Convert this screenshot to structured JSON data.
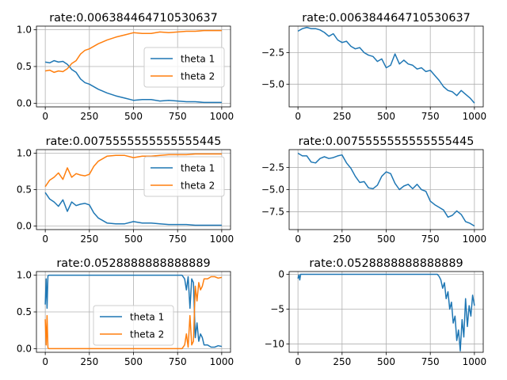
{
  "chart_data": [
    {
      "type": "line",
      "title": "rate:0.006384464710530637",
      "xlabel": "",
      "ylabel": "",
      "xlim": [
        -50,
        1050
      ],
      "ylim": [
        -0.05,
        1.05
      ],
      "xticks": [
        0,
        250,
        500,
        750,
        1000
      ],
      "yticks": [
        0.0,
        0.5,
        1.0
      ],
      "ytick_labels": [
        "0.0",
        "0.5",
        "1.0"
      ],
      "grid": true,
      "legend": "center-right",
      "colors": {
        "theta 1": "#1f77b4",
        "theta 2": "#ff7f0e"
      },
      "x": [
        0,
        25,
        50,
        75,
        100,
        125,
        150,
        175,
        200,
        225,
        250,
        300,
        350,
        400,
        450,
        500,
        550,
        600,
        650,
        700,
        750,
        800,
        850,
        900,
        950,
        1000
      ],
      "series": [
        {
          "name": "theta 1",
          "values": [
            0.56,
            0.55,
            0.58,
            0.56,
            0.57,
            0.53,
            0.46,
            0.42,
            0.33,
            0.28,
            0.26,
            0.19,
            0.14,
            0.1,
            0.07,
            0.04,
            0.05,
            0.05,
            0.03,
            0.04,
            0.03,
            0.02,
            0.02,
            0.01,
            0.01,
            0.01
          ]
        },
        {
          "name": "theta 2",
          "values": [
            0.44,
            0.45,
            0.42,
            0.44,
            0.43,
            0.47,
            0.54,
            0.58,
            0.67,
            0.72,
            0.74,
            0.81,
            0.86,
            0.9,
            0.93,
            0.96,
            0.95,
            0.95,
            0.97,
            0.96,
            0.97,
            0.98,
            0.98,
            0.99,
            0.99,
            0.99
          ]
        }
      ]
    },
    {
      "type": "line",
      "title": "rate:0.006384464710530637",
      "xlabel": "",
      "ylabel": "",
      "xlim": [
        -50,
        1050
      ],
      "ylim": [
        -6.8,
        -0.4
      ],
      "xticks": [
        0,
        250,
        500,
        750,
        1000
      ],
      "yticks": [
        -2.5,
        -5.0
      ],
      "ytick_labels": [
        "−2.5",
        "−5.0"
      ],
      "grid": true,
      "colors": {
        "line": "#1f77b4"
      },
      "x": [
        0,
        25,
        50,
        75,
        100,
        125,
        150,
        175,
        200,
        225,
        250,
        275,
        300,
        325,
        350,
        375,
        400,
        425,
        450,
        475,
        500,
        525,
        550,
        575,
        600,
        625,
        650,
        675,
        700,
        725,
        750,
        775,
        800,
        825,
        850,
        875,
        900,
        925,
        950,
        975,
        1000
      ],
      "values": [
        -0.8,
        -0.6,
        -0.5,
        -0.6,
        -0.6,
        -0.7,
        -0.9,
        -1.2,
        -1.0,
        -1.5,
        -1.7,
        -1.6,
        -2.0,
        -2.2,
        -2.1,
        -2.5,
        -2.7,
        -2.8,
        -3.2,
        -3.0,
        -3.7,
        -3.5,
        -2.6,
        -3.4,
        -3.1,
        -3.4,
        -3.5,
        -3.8,
        -3.7,
        -4.0,
        -3.9,
        -4.3,
        -4.7,
        -5.2,
        -5.5,
        -5.6,
        -5.9,
        -5.5,
        -5.8,
        -6.1,
        -6.5
      ]
    },
    {
      "type": "line",
      "title": "rate:0.0075555555555555445",
      "xlabel": "",
      "ylabel": "",
      "xlim": [
        -50,
        1050
      ],
      "ylim": [
        -0.05,
        1.05
      ],
      "xticks": [
        0,
        250,
        500,
        750,
        1000
      ],
      "yticks": [
        0.0,
        0.5,
        1.0
      ],
      "ytick_labels": [
        "0.0",
        "0.5",
        "1.0"
      ],
      "grid": true,
      "legend": "top-right",
      "colors": {
        "theta 1": "#1f77b4",
        "theta 2": "#ff7f0e"
      },
      "x": [
        0,
        25,
        50,
        75,
        100,
        125,
        150,
        175,
        200,
        225,
        250,
        275,
        300,
        350,
        400,
        450,
        500,
        550,
        600,
        650,
        700,
        750,
        800,
        850,
        900,
        950,
        1000
      ],
      "series": [
        {
          "name": "theta 1",
          "values": [
            0.46,
            0.37,
            0.33,
            0.27,
            0.36,
            0.2,
            0.33,
            0.28,
            0.3,
            0.31,
            0.29,
            0.18,
            0.11,
            0.04,
            0.03,
            0.03,
            0.06,
            0.04,
            0.04,
            0.03,
            0.02,
            0.02,
            0.02,
            0.01,
            0.01,
            0.01,
            0.01
          ]
        },
        {
          "name": "theta 2",
          "values": [
            0.54,
            0.63,
            0.67,
            0.73,
            0.64,
            0.8,
            0.67,
            0.72,
            0.7,
            0.69,
            0.71,
            0.82,
            0.89,
            0.96,
            0.97,
            0.97,
            0.94,
            0.96,
            0.96,
            0.97,
            0.98,
            0.98,
            0.98,
            0.99,
            0.99,
            0.99,
            0.99
          ]
        }
      ]
    },
    {
      "type": "line",
      "title": "rate:0.0075555555555555445",
      "xlabel": "",
      "ylabel": "",
      "xlim": [
        -50,
        1050
      ],
      "ylim": [
        -9.5,
        -0.5
      ],
      "xticks": [
        0,
        250,
        500,
        750,
        1000
      ],
      "yticks": [
        -2.5,
        -5.0,
        -7.5
      ],
      "ytick_labels": [
        "−2.5",
        "−5.0",
        "−7.5"
      ],
      "grid": true,
      "colors": {
        "line": "#1f77b4"
      },
      "x": [
        0,
        25,
        50,
        75,
        100,
        125,
        150,
        175,
        200,
        225,
        250,
        275,
        300,
        325,
        350,
        375,
        400,
        425,
        450,
        475,
        500,
        525,
        550,
        575,
        600,
        625,
        650,
        675,
        700,
        725,
        750,
        775,
        800,
        825,
        850,
        875,
        900,
        925,
        950,
        975,
        1000
      ],
      "values": [
        -0.9,
        -1.2,
        -1.2,
        -1.9,
        -2.0,
        -1.5,
        -1.3,
        -1.5,
        -1.4,
        -1.2,
        -1.1,
        -2.0,
        -2.6,
        -3.5,
        -4.2,
        -4.1,
        -4.8,
        -4.9,
        -4.5,
        -3.5,
        -3.0,
        -3.2,
        -4.3,
        -5.0,
        -4.6,
        -4.4,
        -4.9,
        -4.4,
        -5.0,
        -5.2,
        -6.3,
        -6.7,
        -7.0,
        -7.3,
        -8.1,
        -7.9,
        -7.4,
        -7.8,
        -8.6,
        -8.8,
        -9.1
      ]
    },
    {
      "type": "line",
      "title": "rate:0.0528888888888889",
      "xlabel": "",
      "ylabel": "",
      "xlim": [
        -50,
        1050
      ],
      "ylim": [
        -0.05,
        1.05
      ],
      "xticks": [
        0,
        250,
        500,
        750,
        1000
      ],
      "yticks": [
        0.0,
        0.5,
        1.0
      ],
      "ytick_labels": [
        "0.0",
        "0.5",
        "1.0"
      ],
      "grid": true,
      "legend": "lower-center",
      "colors": {
        "theta 1": "#1f77b4",
        "theta 2": "#ff7f0e"
      },
      "x": [
        0,
        5,
        10,
        15,
        20,
        100,
        200,
        300,
        400,
        500,
        600,
        700,
        750,
        775,
        790,
        800,
        810,
        820,
        830,
        840,
        850,
        860,
        870,
        880,
        890,
        900,
        920,
        940,
        960,
        980,
        1000
      ],
      "series": [
        {
          "name": "theta 1",
          "values": [
            0.6,
            0.95,
            0.55,
            0.99,
            1.0,
            1.0,
            1.0,
            1.0,
            1.0,
            1.0,
            1.0,
            1.0,
            1.0,
            1.0,
            0.95,
            0.8,
            0.98,
            0.55,
            0.95,
            0.9,
            0.15,
            0.35,
            0.1,
            0.2,
            0.15,
            0.05,
            0.05,
            0.02,
            0.02,
            0.04,
            0.03
          ]
        },
        {
          "name": "theta 2",
          "values": [
            0.4,
            0.05,
            0.45,
            0.01,
            0.0,
            0.0,
            0.0,
            0.0,
            0.0,
            0.0,
            0.0,
            0.0,
            0.0,
            0.0,
            0.05,
            0.2,
            0.02,
            0.45,
            0.05,
            0.1,
            0.85,
            0.65,
            0.9,
            0.8,
            0.85,
            0.95,
            0.95,
            0.98,
            0.98,
            0.96,
            0.97
          ]
        }
      ]
    },
    {
      "type": "line",
      "title": "rate:0.0528888888888889",
      "xlabel": "",
      "ylabel": "",
      "xlim": [
        -50,
        1050
      ],
      "ylim": [
        -11.2,
        0.4
      ],
      "xticks": [
        0,
        250,
        500,
        750,
        1000
      ],
      "yticks": [
        0,
        -5,
        -10
      ],
      "ytick_labels": [
        "0",
        "−5",
        "−10"
      ],
      "grid": true,
      "colors": {
        "line": "#1f77b4"
      },
      "x": [
        0,
        5,
        10,
        15,
        20,
        100,
        200,
        300,
        400,
        500,
        600,
        700,
        790,
        800,
        810,
        820,
        830,
        840,
        850,
        860,
        870,
        880,
        890,
        900,
        910,
        920,
        930,
        940,
        950,
        960,
        970,
        980,
        990,
        1000
      ],
      "values": [
        -0.6,
        -0.1,
        -0.8,
        0.0,
        0.0,
        0.0,
        0.0,
        0.0,
        0.0,
        0.0,
        0.0,
        0.0,
        0.0,
        -0.3,
        -0.8,
        -2.0,
        -1.2,
        -3.5,
        -2.5,
        -5.0,
        -4.0,
        -7.0,
        -6.0,
        -9.5,
        -8.0,
        -11.0,
        -6.5,
        -9.0,
        -3.5,
        -7.5,
        -4.5,
        -6.0,
        -3.0,
        -4.5
      ]
    }
  ]
}
